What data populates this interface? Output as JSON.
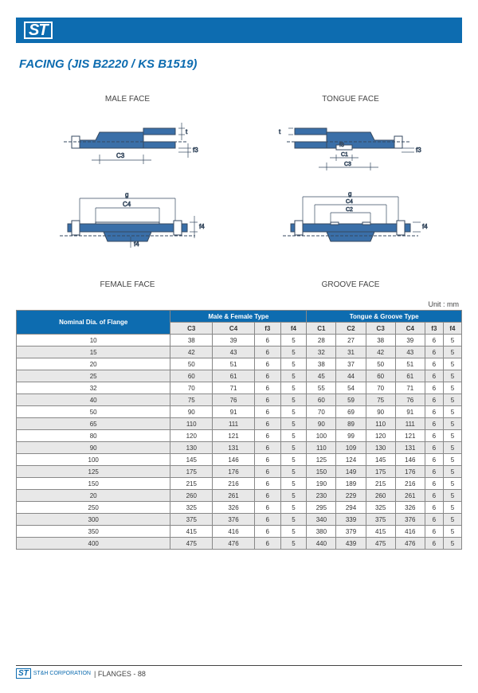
{
  "header": {
    "logo": "ST"
  },
  "title": "FACING (JIS B2220 / KS B1519)",
  "diagrams": {
    "male": {
      "label": "MALE FACE",
      "dims": [
        "t",
        "f3",
        "C3"
      ],
      "fill": "#3a6fa8",
      "line": "#374a60"
    },
    "female": {
      "label": "FEMALE FACE",
      "dims": [
        "g",
        "C4",
        "f4",
        "f4"
      ],
      "fill": "#3a6fa8",
      "line": "#374a60"
    },
    "tongue": {
      "label": "TONGUE FACE",
      "dims": [
        "t",
        "f3",
        "f3",
        "C1",
        "C3"
      ],
      "fill": "#3a6fa8",
      "line": "#374a60"
    },
    "groove": {
      "label": "GROOVE FACE",
      "dims": [
        "g",
        "C4",
        "C2",
        "f4"
      ],
      "fill": "#3a6fa8",
      "line": "#374a60"
    }
  },
  "unit_label": "Unit : mm",
  "table": {
    "rowhead": "Nominal Dia. of Flange",
    "group1": "Male &  Female Type",
    "group2": "Tongue & Groove Type",
    "subcols": [
      "C3",
      "C4",
      "f3",
      "f4",
      "C1",
      "C2",
      "C3",
      "C4",
      "f3",
      "f4"
    ],
    "rows": [
      [
        "10",
        "38",
        "39",
        "6",
        "5",
        "28",
        "27",
        "38",
        "39",
        "6",
        "5"
      ],
      [
        "15",
        "42",
        "43",
        "6",
        "5",
        "32",
        "31",
        "42",
        "43",
        "6",
        "5"
      ],
      [
        "20",
        "50",
        "51",
        "6",
        "5",
        "38",
        "37",
        "50",
        "51",
        "6",
        "5"
      ],
      [
        "25",
        "60",
        "61",
        "6",
        "5",
        "45",
        "44",
        "60",
        "61",
        "6",
        "5"
      ],
      [
        "32",
        "70",
        "71",
        "6",
        "5",
        "55",
        "54",
        "70",
        "71",
        "6",
        "5"
      ],
      [
        "40",
        "75",
        "76",
        "6",
        "5",
        "60",
        "59",
        "75",
        "76",
        "6",
        "5"
      ],
      [
        "50",
        "90",
        "91",
        "6",
        "5",
        "70",
        "69",
        "90",
        "91",
        "6",
        "5"
      ],
      [
        "65",
        "110",
        "111",
        "6",
        "5",
        "90",
        "89",
        "110",
        "111",
        "6",
        "5"
      ],
      [
        "80",
        "120",
        "121",
        "6",
        "5",
        "100",
        "99",
        "120",
        "121",
        "6",
        "5"
      ],
      [
        "90",
        "130",
        "131",
        "6",
        "5",
        "110",
        "109",
        "130",
        "131",
        "6",
        "5"
      ],
      [
        "100",
        "145",
        "146",
        "6",
        "5",
        "125",
        "124",
        "145",
        "146",
        "6",
        "5"
      ],
      [
        "125",
        "175",
        "176",
        "6",
        "5",
        "150",
        "149",
        "175",
        "176",
        "6",
        "5"
      ],
      [
        "150",
        "215",
        "216",
        "6",
        "5",
        "190",
        "189",
        "215",
        "216",
        "6",
        "5"
      ],
      [
        "20",
        "260",
        "261",
        "6",
        "5",
        "230",
        "229",
        "260",
        "261",
        "6",
        "5"
      ],
      [
        "250",
        "325",
        "326",
        "6",
        "5",
        "295",
        "294",
        "325",
        "326",
        "6",
        "5"
      ],
      [
        "300",
        "375",
        "376",
        "6",
        "5",
        "340",
        "339",
        "375",
        "376",
        "6",
        "5"
      ],
      [
        "350",
        "415",
        "416",
        "6",
        "5",
        "380",
        "379",
        "415",
        "416",
        "6",
        "5"
      ],
      [
        "400",
        "475",
        "476",
        "6",
        "5",
        "440",
        "439",
        "475",
        "476",
        "6",
        "5"
      ]
    ],
    "header_bg": "#0d6cb0",
    "header_fg": "#ffffff",
    "sub_bg": "#e8e8e8",
    "alt_bg": "#e8e8e8",
    "border": "#888888",
    "fontsize": 8
  },
  "footer": {
    "logo": "ST",
    "corp": "ST&H CORPORATION",
    "section": "FLANGES - 88"
  }
}
